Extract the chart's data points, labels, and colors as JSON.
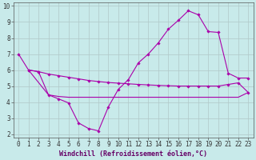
{
  "background_color": "#c8eaea",
  "grid_color": "#b0c8c8",
  "line_color": "#aa00aa",
  "xlabel": "Windchill (Refroidissement éolien,°C)",
  "xlim": [
    -0.5,
    23.5
  ],
  "ylim": [
    1.8,
    10.2
  ],
  "yticks": [
    2,
    3,
    4,
    5,
    6,
    7,
    8,
    9,
    10
  ],
  "xticks": [
    0,
    1,
    2,
    3,
    4,
    5,
    6,
    7,
    8,
    9,
    10,
    11,
    12,
    13,
    14,
    15,
    16,
    17,
    18,
    19,
    20,
    21,
    22,
    23
  ],
  "line1_x": [
    0,
    1,
    2,
    3,
    4,
    5,
    6,
    7,
    8,
    9,
    10,
    11,
    12,
    13,
    14,
    15,
    16,
    17,
    18,
    19,
    20,
    21,
    22,
    23
  ],
  "line1_y": [
    7.0,
    6.0,
    5.9,
    4.45,
    4.2,
    3.95,
    2.7,
    2.35,
    2.2,
    3.7,
    4.8,
    5.4,
    6.45,
    7.0,
    7.7,
    8.55,
    9.1,
    9.7,
    9.45,
    8.4,
    8.35,
    5.8,
    5.5,
    5.5
  ],
  "line2_x": [
    1,
    2,
    3,
    4,
    5,
    6,
    7,
    8,
    9,
    10,
    11,
    12,
    13,
    14,
    15,
    16,
    17,
    18,
    19,
    20,
    21,
    22,
    23
  ],
  "line2_y": [
    6.0,
    5.9,
    5.75,
    5.65,
    5.55,
    5.45,
    5.35,
    5.28,
    5.22,
    5.18,
    5.14,
    5.1,
    5.07,
    5.04,
    5.02,
    5.0,
    5.0,
    5.0,
    5.0,
    5.0,
    5.1,
    5.2,
    4.6
  ],
  "line3_x": [
    1,
    3,
    4,
    5,
    6,
    7,
    8,
    9,
    10,
    11,
    12,
    13,
    14,
    15,
    16,
    17,
    18,
    19,
    20,
    21,
    22,
    23
  ],
  "line3_y": [
    6.0,
    4.45,
    4.35,
    4.3,
    4.3,
    4.3,
    4.3,
    4.3,
    4.3,
    4.3,
    4.3,
    4.3,
    4.3,
    4.3,
    4.3,
    4.3,
    4.3,
    4.3,
    4.3,
    4.3,
    4.3,
    4.6
  ],
  "marker": "D",
  "markersize": 1.8,
  "linewidth": 0.8,
  "tick_fontsize": 5.5,
  "xlabel_fontsize": 6.0
}
